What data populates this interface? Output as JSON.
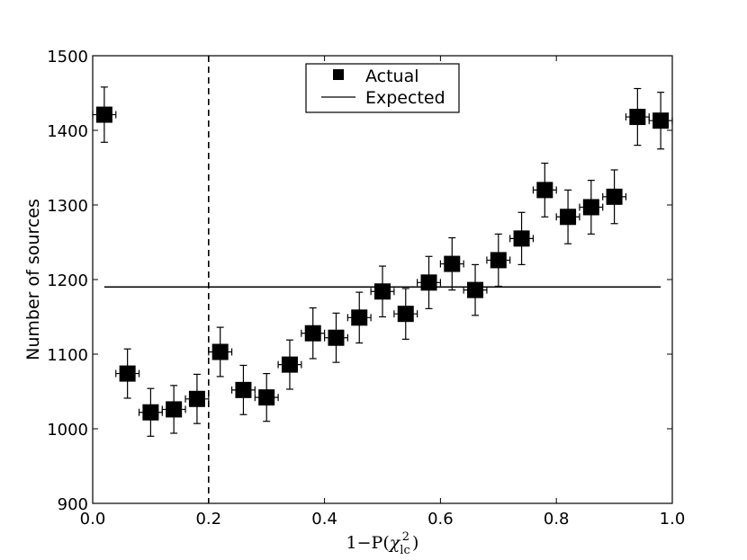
{
  "chart_data": {
    "type": "scatter",
    "xlim": [
      0.0,
      1.0
    ],
    "ylim": [
      900,
      1500
    ],
    "xticks": [
      "0.0",
      "0.2",
      "0.4",
      "0.6",
      "0.8",
      "1.0"
    ],
    "yticks": [
      "900",
      "1000",
      "1100",
      "1200",
      "1300",
      "1400",
      "1500"
    ],
    "xlabel_prefix": "1−P(",
    "xlabel_chi": "χ",
    "xlabel_sub": "lc",
    "xlabel_sup": "2",
    "xlabel_suffix": ")",
    "ylabel": "Number of sources",
    "legend_position": "top-center",
    "series": [
      {
        "name": "Actual",
        "marker": "square",
        "color": "#000000",
        "x_error": 0.02,
        "points": [
          {
            "x": 0.02,
            "y": 1421,
            "yerr": 37
          },
          {
            "x": 0.06,
            "y": 1074,
            "yerr": 33
          },
          {
            "x": 0.1,
            "y": 1022,
            "yerr": 32
          },
          {
            "x": 0.14,
            "y": 1026,
            "yerr": 32
          },
          {
            "x": 0.18,
            "y": 1040,
            "yerr": 33
          },
          {
            "x": 0.22,
            "y": 1103,
            "yerr": 33
          },
          {
            "x": 0.26,
            "y": 1052,
            "yerr": 33
          },
          {
            "x": 0.3,
            "y": 1042,
            "yerr": 32
          },
          {
            "x": 0.34,
            "y": 1086,
            "yerr": 33
          },
          {
            "x": 0.38,
            "y": 1128,
            "yerr": 34
          },
          {
            "x": 0.42,
            "y": 1122,
            "yerr": 33
          },
          {
            "x": 0.46,
            "y": 1149,
            "yerr": 34
          },
          {
            "x": 0.5,
            "y": 1184,
            "yerr": 34
          },
          {
            "x": 0.54,
            "y": 1154,
            "yerr": 34
          },
          {
            "x": 0.58,
            "y": 1196,
            "yerr": 35
          },
          {
            "x": 0.62,
            "y": 1221,
            "yerr": 35
          },
          {
            "x": 0.66,
            "y": 1186,
            "yerr": 34
          },
          {
            "x": 0.7,
            "y": 1226,
            "yerr": 35
          },
          {
            "x": 0.74,
            "y": 1255,
            "yerr": 35
          },
          {
            "x": 0.78,
            "y": 1320,
            "yerr": 36
          },
          {
            "x": 0.82,
            "y": 1284,
            "yerr": 36
          },
          {
            "x": 0.86,
            "y": 1297,
            "yerr": 36
          },
          {
            "x": 0.9,
            "y": 1311,
            "yerr": 36
          },
          {
            "x": 0.94,
            "y": 1418,
            "yerr": 38
          },
          {
            "x": 0.98,
            "y": 1413,
            "yerr": 38
          }
        ]
      },
      {
        "name": "Expected",
        "style": "line",
        "color": "#000000",
        "x": [
          0.02,
          0.98
        ],
        "y": [
          1190,
          1190
        ]
      }
    ],
    "vline": {
      "x": 0.2,
      "style": "dashed",
      "color": "#000000"
    }
  }
}
